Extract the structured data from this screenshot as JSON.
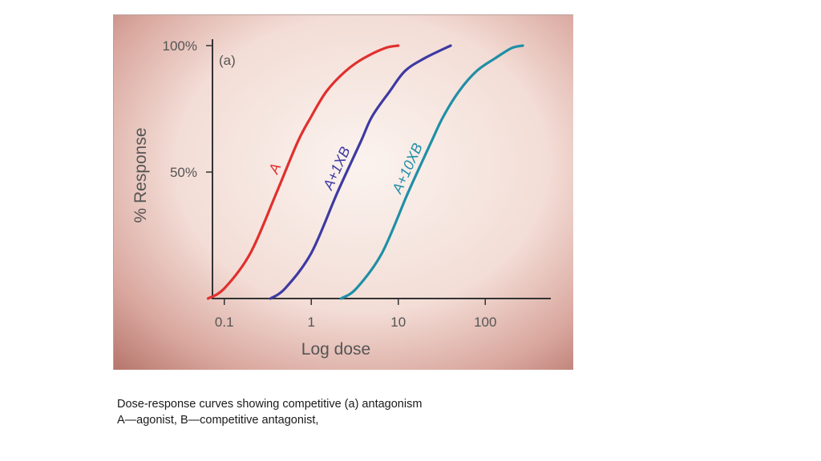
{
  "chart_data": {
    "type": "line",
    "panel_label": "(a)",
    "xlabel": "Log dose",
    "ylabel": "% Response",
    "x_scale": "log",
    "xlim": [
      0.035,
      300
    ],
    "ylim": [
      0,
      100
    ],
    "x_ticks": [
      {
        "value": 0.1,
        "label": "0.1"
      },
      {
        "value": 1,
        "label": "1"
      },
      {
        "value": 10,
        "label": "10"
      },
      {
        "value": 100,
        "label": "100"
      }
    ],
    "y_ticks": [
      {
        "value": 50,
        "label": "50%"
      },
      {
        "value": 100,
        "label": "100%"
      }
    ],
    "grid": false,
    "series": [
      {
        "name": "A",
        "color": "#e0302e",
        "x": [
          0.065,
          0.1,
          0.2,
          0.4,
          0.7,
          1.0,
          1.5,
          2.5,
          4.0,
          7.0,
          10.0
        ],
        "y": [
          0,
          4,
          18,
          42,
          62,
          72,
          82,
          90,
          95,
          99,
          100
        ]
      },
      {
        "name": "A+1XB",
        "color": "#3e3aa2",
        "x": [
          0.34,
          0.5,
          1.0,
          2.0,
          3.7,
          5.0,
          8.0,
          12.0,
          20.0,
          40.0
        ],
        "y": [
          0,
          4,
          18,
          42,
          62,
          72,
          82,
          90,
          95,
          100
        ]
      },
      {
        "name": "A+10XB",
        "color": "#1f8fa6",
        "x": [
          2.2,
          3.3,
          6.5,
          13.0,
          24.0,
          33.0,
          50.0,
          80.0,
          130.0,
          200.0,
          270.0
        ],
        "y": [
          0,
          4,
          18,
          42,
          62,
          72,
          82,
          90,
          95,
          99,
          100
        ]
      }
    ]
  },
  "caption": {
    "line1": "Dose-response curves showing competitive (a) antagonism",
    "line2": "A—agonist, B—competitive antagonist,"
  }
}
